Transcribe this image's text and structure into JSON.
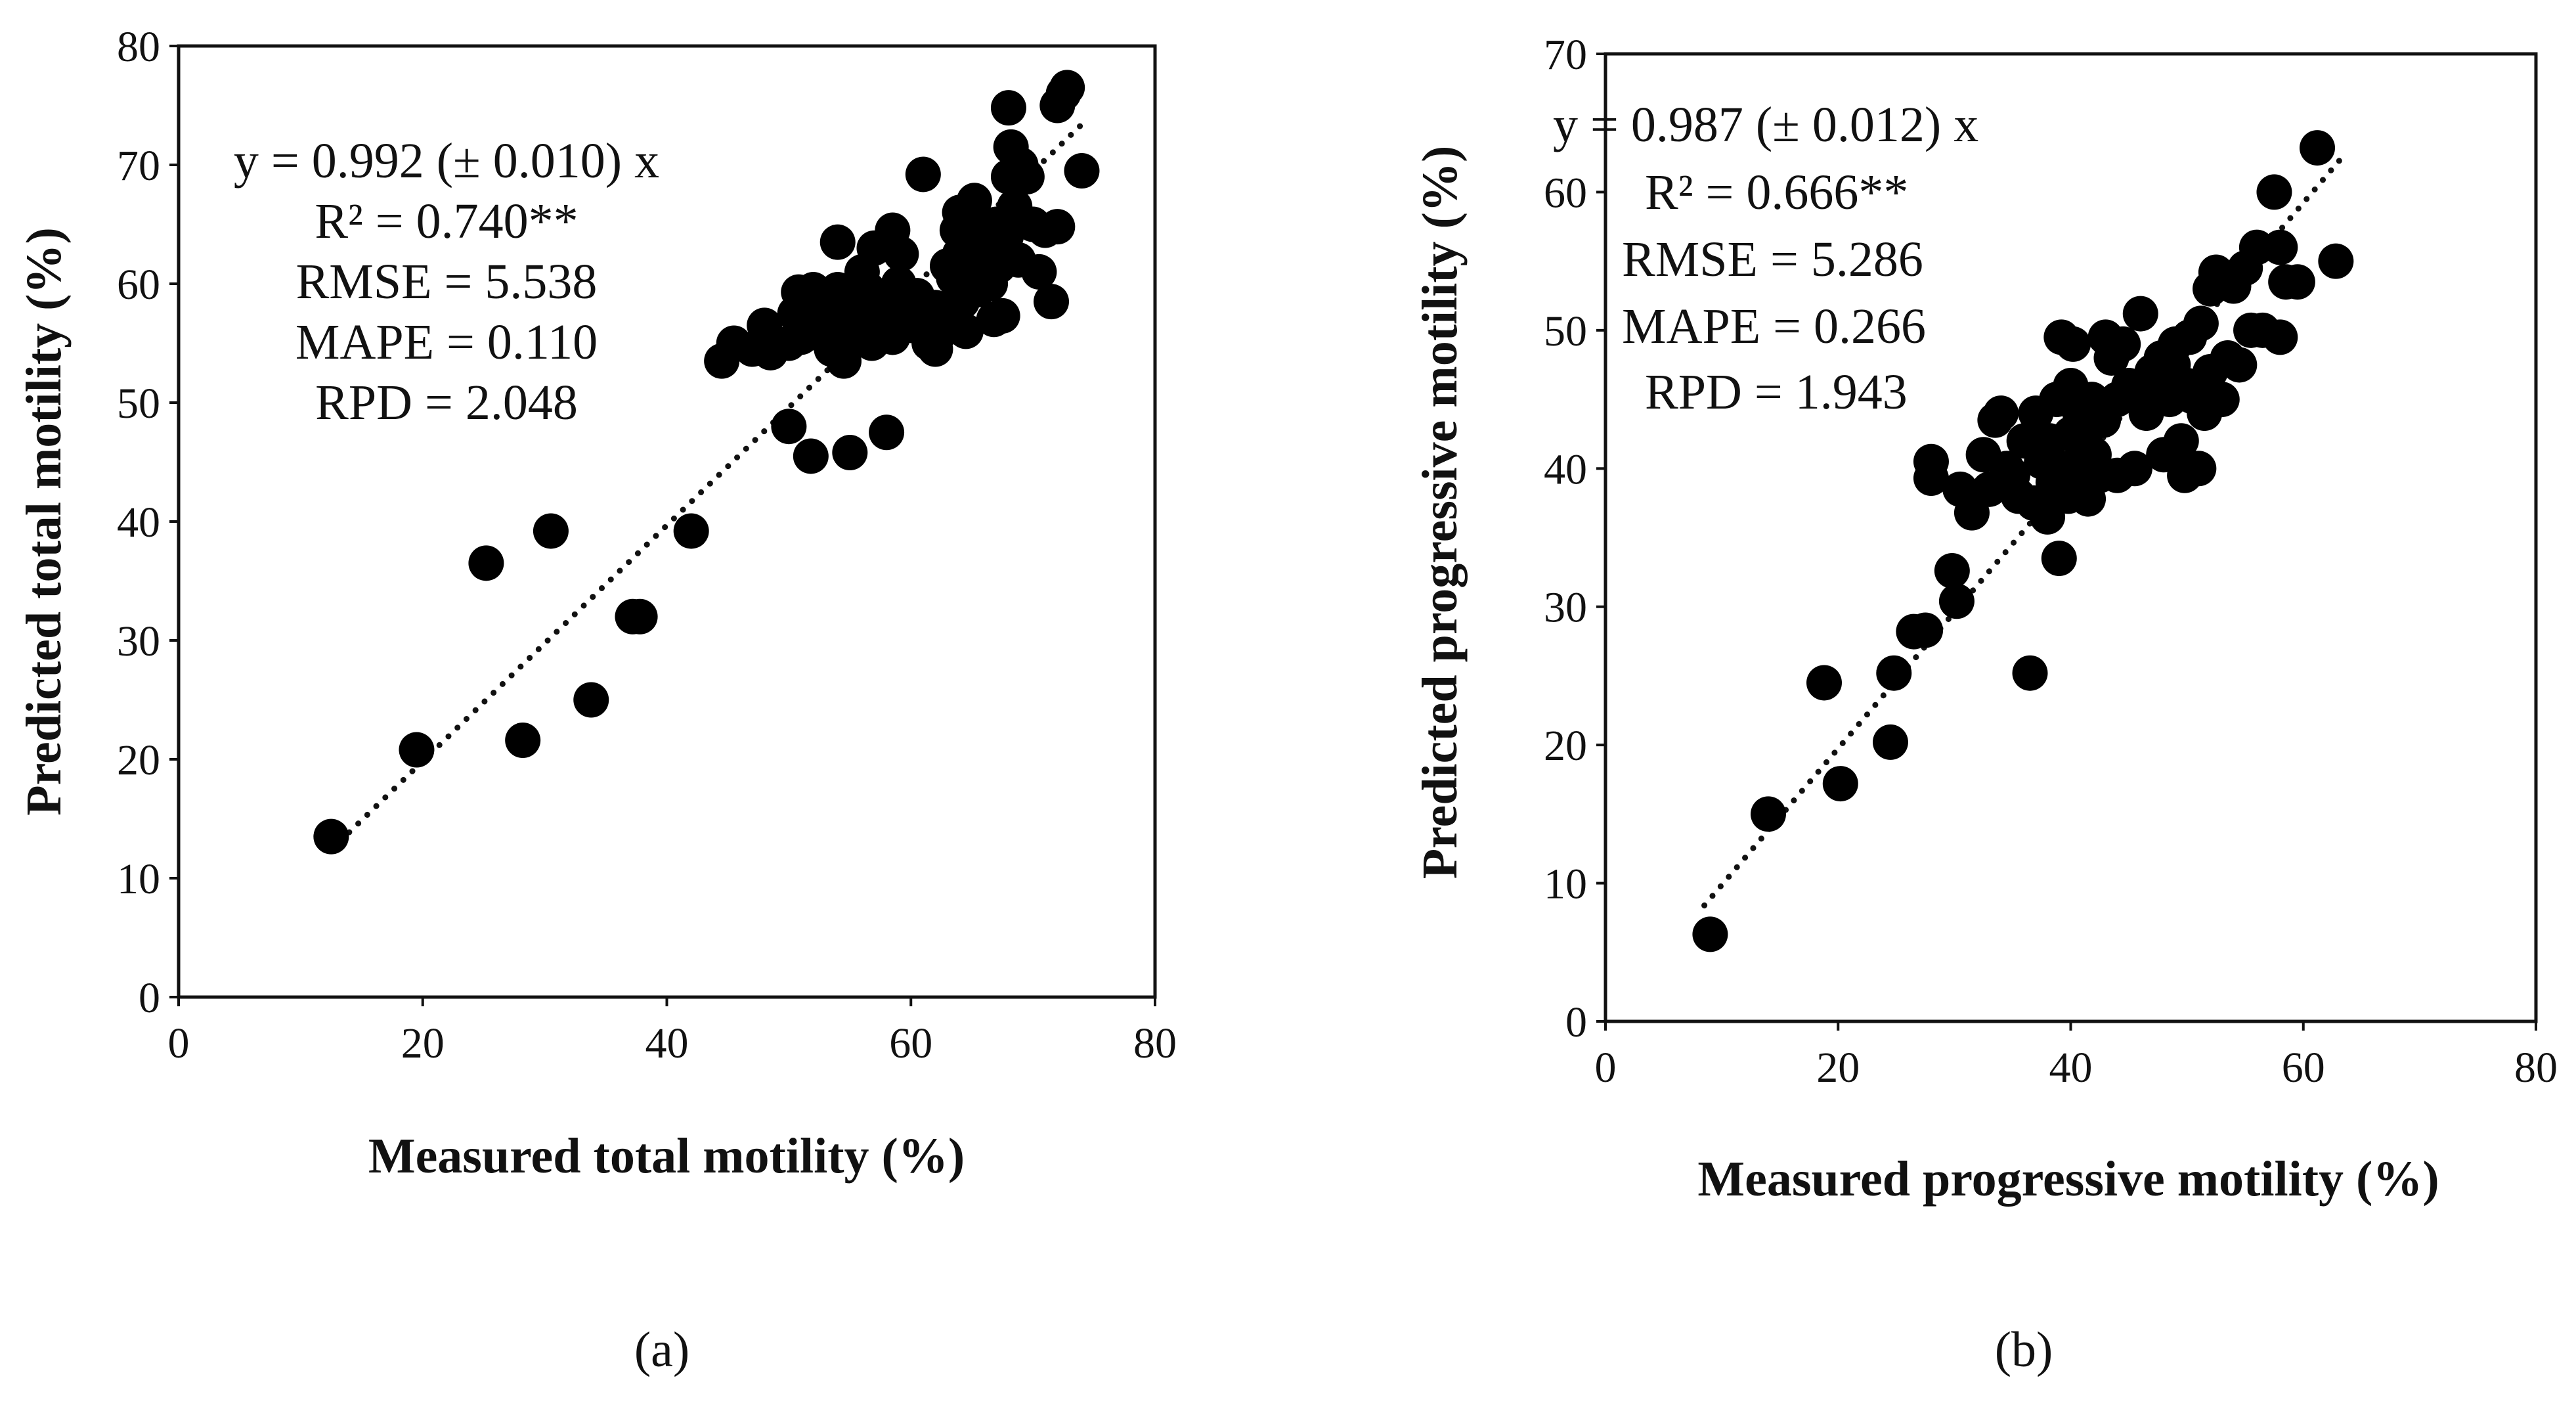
{
  "chart_data": [
    {
      "type": "scatter",
      "panel_label": "(a)",
      "xlabel": "Measured total motility (%)",
      "ylabel": "Predicted total motility (%)",
      "xlim": [
        0,
        80
      ],
      "ylim": [
        0,
        80
      ],
      "xticks": [
        "0",
        "20",
        "40",
        "60",
        "80"
      ],
      "yticks": [
        "0",
        "10",
        "20",
        "30",
        "40",
        "50",
        "60",
        "70",
        "80"
      ],
      "grid": false,
      "trendline": {
        "style": "dotted",
        "slope": 0.992,
        "x_range": [
          12.5,
          74
        ]
      },
      "stats": [
        "y = 0.992 (± 0.010) x",
        "R² = 0.740**",
        "RMSE = 5.538",
        "MAPE = 0.110",
        "RPD = 2.048"
      ],
      "points": [
        [
          12.5,
          13.5
        ],
        [
          19.5,
          20.8
        ],
        [
          25.2,
          36.5
        ],
        [
          28.2,
          21.6
        ],
        [
          30.5,
          39.2
        ],
        [
          33.8,
          25
        ],
        [
          37.2,
          32
        ],
        [
          37.8,
          32
        ],
        [
          42,
          39.2
        ],
        [
          44.5,
          53.5
        ],
        [
          45.5,
          55
        ],
        [
          47,
          54.5
        ],
        [
          48,
          56.5
        ],
        [
          48.5,
          54.2
        ],
        [
          50,
          48
        ],
        [
          50,
          55
        ],
        [
          50.5,
          57.5
        ],
        [
          50.8,
          59.3
        ],
        [
          51,
          55.5
        ],
        [
          51.8,
          45.5
        ],
        [
          52,
          57.5
        ],
        [
          52,
          59.5
        ],
        [
          52.5,
          55.8
        ],
        [
          53,
          57
        ],
        [
          53.5,
          54.5
        ],
        [
          53.8,
          56.5
        ],
        [
          54,
          59.5
        ],
        [
          54,
          63.5
        ],
        [
          54.5,
          53.5
        ],
        [
          55,
          45.8
        ],
        [
          55,
          57
        ],
        [
          55.5,
          55.5
        ],
        [
          55.8,
          58.8
        ],
        [
          56,
          61
        ],
        [
          56,
          56
        ],
        [
          56.5,
          59.5
        ],
        [
          56.8,
          55
        ],
        [
          57,
          63
        ],
        [
          57.5,
          56.5
        ],
        [
          58,
          47.5
        ],
        [
          58,
          57.8
        ],
        [
          58.5,
          64.5
        ],
        [
          58.5,
          55.5
        ],
        [
          59,
          60
        ],
        [
          59.2,
          62.5
        ],
        [
          59.5,
          57
        ],
        [
          60,
          56.5
        ],
        [
          60.5,
          59
        ],
        [
          61,
          69.2
        ],
        [
          61.5,
          55
        ],
        [
          62,
          54.5
        ],
        [
          62,
          58
        ],
        [
          62.5,
          56
        ],
        [
          63,
          57.2
        ],
        [
          63,
          61.5
        ],
        [
          63.5,
          60.5
        ],
        [
          63.8,
          64.5
        ],
        [
          64,
          62.5
        ],
        [
          64,
          66
        ],
        [
          64.2,
          58.5
        ],
        [
          64.5,
          56
        ],
        [
          65,
          61
        ],
        [
          65,
          63.5
        ],
        [
          65.2,
          67
        ],
        [
          65.5,
          59.5
        ],
        [
          65.8,
          62
        ],
        [
          66,
          60.5
        ],
        [
          66,
          64.5
        ],
        [
          66.5,
          60
        ],
        [
          66.8,
          57
        ],
        [
          67,
          62.5
        ],
        [
          67,
          65
        ],
        [
          67.2,
          61.5
        ],
        [
          67.5,
          57.3
        ],
        [
          67.8,
          64
        ],
        [
          68,
          74.8
        ],
        [
          68,
          69
        ],
        [
          68.2,
          71.5
        ],
        [
          68.5,
          66.5
        ],
        [
          68.8,
          62
        ],
        [
          69,
          70
        ],
        [
          69.5,
          69
        ],
        [
          70,
          65
        ],
        [
          70.5,
          61
        ],
        [
          71,
          64.5
        ],
        [
          71.5,
          58.5
        ],
        [
          72,
          75
        ],
        [
          72,
          64.8
        ],
        [
          72.5,
          76
        ],
        [
          72.8,
          76.5
        ],
        [
          74,
          69.5
        ]
      ]
    },
    {
      "type": "scatter",
      "panel_label": "(b)",
      "xlabel": "Measured progressive motility (%)",
      "ylabel": "Predicted progressive motility (%)",
      "xlim": [
        0,
        80
      ],
      "ylim": [
        0,
        70
      ],
      "xticks": [
        "0",
        "20",
        "40",
        "60",
        "80"
      ],
      "yticks": [
        "0",
        "10",
        "20",
        "30",
        "40",
        "50",
        "60",
        "70"
      ],
      "grid": false,
      "trendline": {
        "style": "dotted",
        "slope": 0.987,
        "x_range": [
          8.5,
          63.5
        ]
      },
      "stats": [
        "y = 0.987 (± 0.012) x",
        "R² = 0.666**",
        "RMSE = 5.286",
        "MAPE = 0.266",
        "RPD = 1.943"
      ],
      "points": [
        [
          9,
          6.3
        ],
        [
          14,
          15
        ],
        [
          18.8,
          24.5
        ],
        [
          20.2,
          17.2
        ],
        [
          24.5,
          20.2
        ],
        [
          24.8,
          25.2
        ],
        [
          26.5,
          28.2
        ],
        [
          27.5,
          28.3
        ],
        [
          28,
          40.5
        ],
        [
          28,
          39.3
        ],
        [
          29.8,
          32.6
        ],
        [
          30.2,
          30.4
        ],
        [
          30.5,
          38.5
        ],
        [
          31.5,
          36.8
        ],
        [
          32.5,
          41
        ],
        [
          33,
          38.5
        ],
        [
          33.5,
          43.5
        ],
        [
          34,
          44
        ],
        [
          34.5,
          40
        ],
        [
          35,
          39.5
        ],
        [
          35.5,
          38
        ],
        [
          36,
          42
        ],
        [
          36.5,
          25.2
        ],
        [
          36.8,
          37.5
        ],
        [
          37,
          44
        ],
        [
          37.5,
          40.5
        ],
        [
          38,
          36.5
        ],
        [
          38.2,
          42
        ],
        [
          38.5,
          39
        ],
        [
          38.8,
          45
        ],
        [
          39,
          33.5
        ],
        [
          39.2,
          49.5
        ],
        [
          39.5,
          40
        ],
        [
          39.8,
          38
        ],
        [
          40,
          42.5
        ],
        [
          40,
          46
        ],
        [
          40.2,
          49
        ],
        [
          40.5,
          38.5
        ],
        [
          40.8,
          44
        ],
        [
          41,
          40.5
        ],
        [
          41.2,
          42
        ],
        [
          41.5,
          37.8
        ],
        [
          41.8,
          45
        ],
        [
          42,
          41
        ],
        [
          42.5,
          39.5
        ],
        [
          42.8,
          43.5
        ],
        [
          43,
          49.5
        ],
        [
          43.5,
          48
        ],
        [
          44,
          39.5
        ],
        [
          44,
          45
        ],
        [
          44.5,
          49
        ],
        [
          45,
          46
        ],
        [
          45.5,
          40
        ],
        [
          46,
          51.2
        ],
        [
          46.5,
          44
        ],
        [
          47,
          47
        ],
        [
          47.5,
          45.5
        ],
        [
          47.8,
          48
        ],
        [
          48,
          41
        ],
        [
          48.5,
          45
        ],
        [
          48.8,
          47.5
        ],
        [
          49,
          49
        ],
        [
          49.5,
          42
        ],
        [
          49.8,
          39.5
        ],
        [
          50,
          46
        ],
        [
          50.2,
          49.5
        ],
        [
          50.5,
          45.2
        ],
        [
          51,
          40
        ],
        [
          51.2,
          50.5
        ],
        [
          51.5,
          44
        ],
        [
          52,
          53
        ],
        [
          52,
          47
        ],
        [
          52.5,
          54.2
        ],
        [
          53,
          45
        ],
        [
          53.5,
          48
        ],
        [
          54,
          53.2
        ],
        [
          54.5,
          47.5
        ],
        [
          55,
          54.5
        ],
        [
          55.5,
          50
        ],
        [
          56,
          56
        ],
        [
          56.5,
          50
        ],
        [
          57.5,
          60
        ],
        [
          58,
          56
        ],
        [
          58,
          49.5
        ],
        [
          58.5,
          53.5
        ],
        [
          59.5,
          53.5
        ],
        [
          61.2,
          63.2
        ],
        [
          62.8,
          55
        ]
      ]
    }
  ]
}
